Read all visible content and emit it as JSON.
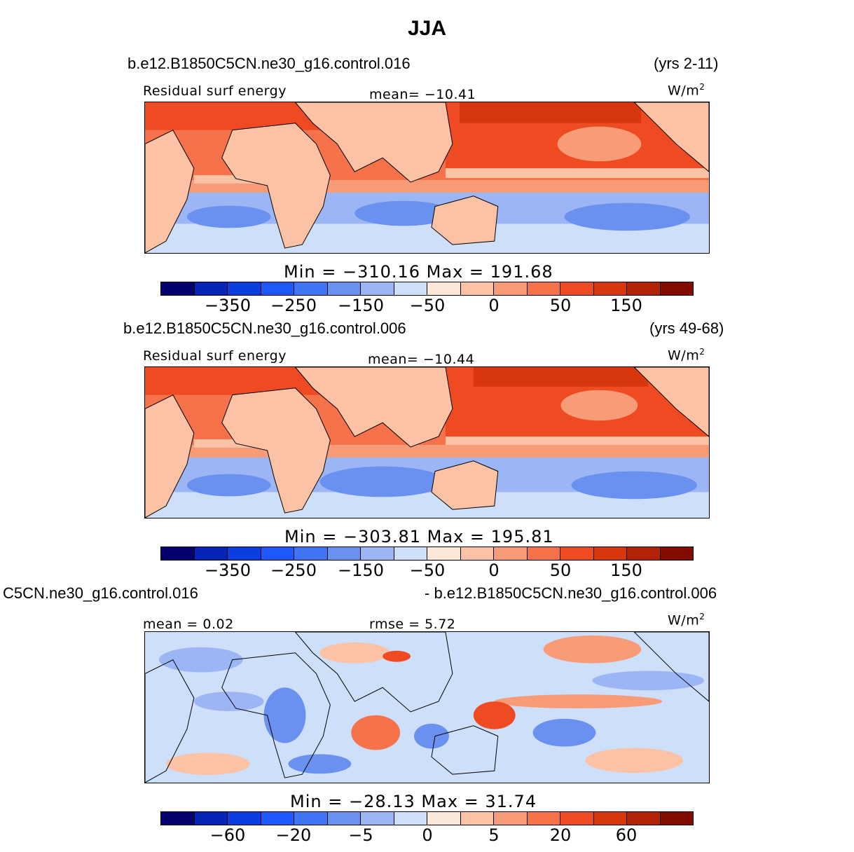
{
  "title": "JJA",
  "colors": [
    "#03006d",
    "#0425b5",
    "#0a3ee0",
    "#1f57ff",
    "#3f75f5",
    "#6a90f0",
    "#9cb6f5",
    "#cddff9",
    "#fde7d6",
    "#fbc2a6",
    "#f89b77",
    "#f5724a",
    "#ef4b22",
    "#d8360d",
    "#b22205",
    "#840b00"
  ],
  "units_label": "W/m",
  "units_sup": "2",
  "panels": [
    {
      "case": "b.e12.B1850C5CN.ne30_g16.control.016",
      "years": "(yrs 2-11)",
      "variable": "Residual surf energy",
      "mean_label": "mean= −10.41",
      "minmax": "Min = −310.16 Max = 191.68",
      "ticks": [
        "−350",
        "−250",
        "−150",
        "−50",
        "0",
        "50",
        "150"
      ]
    },
    {
      "case": "b.e12.B1850C5CN.ne30_g16.control.006",
      "years": "(yrs 49-68)",
      "variable": "Residual surf energy",
      "mean_label": "mean= −10.44",
      "minmax": "Min = −303.81 Max = 195.81",
      "ticks": [
        "−350",
        "−250",
        "−150",
        "−50",
        "0",
        "50",
        "150"
      ]
    },
    {
      "case_left": "C5CN.ne30_g16.control.016",
      "case_right": "- b.e12.B1850C5CN.ne30_g16.control.006",
      "mean_label": "mean =    0.02",
      "rmse_label": "rmse =    5.72",
      "minmax": "Min = −28.13 Max =  31.74",
      "ticks": [
        "−60",
        "−20",
        "−5",
        "0",
        "5",
        "20",
        "60"
      ]
    }
  ]
}
